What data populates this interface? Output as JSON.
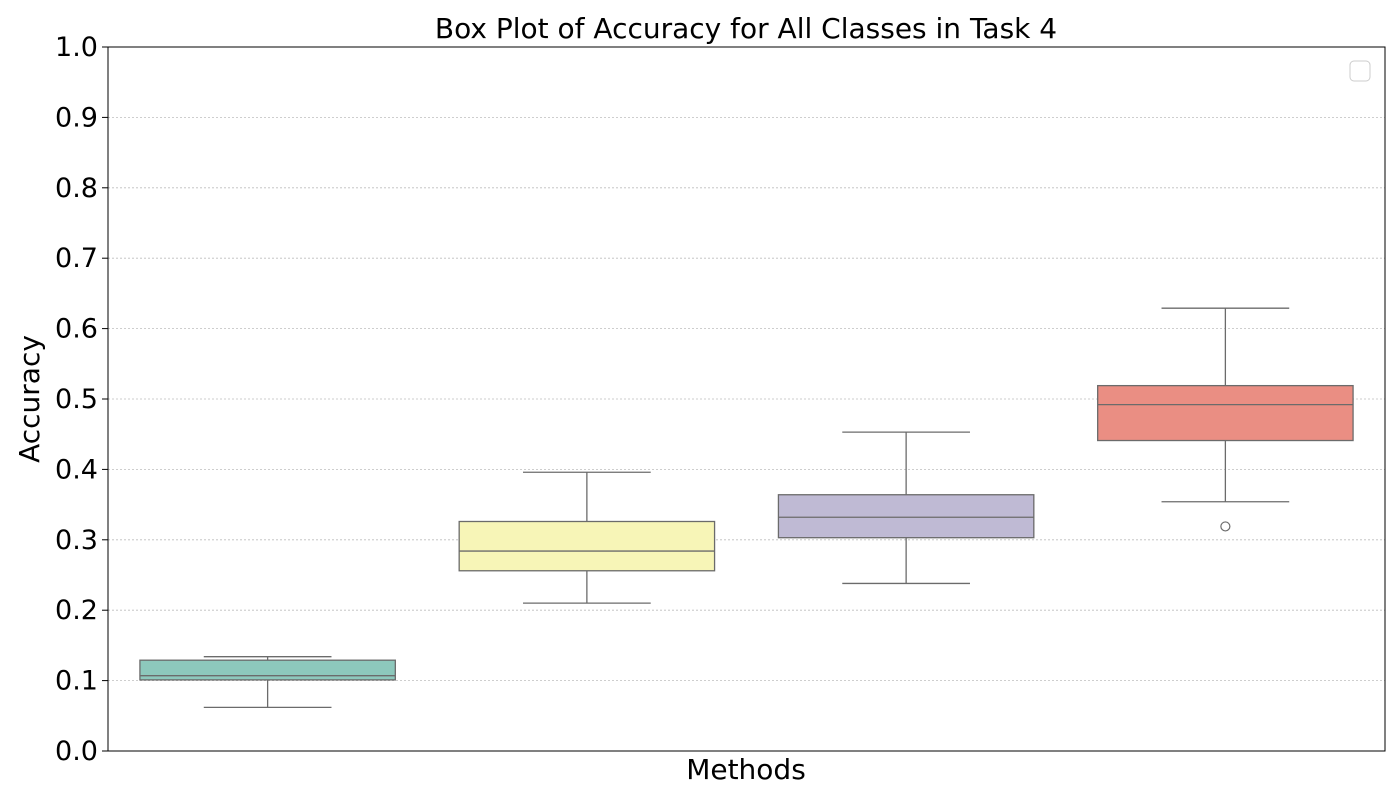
{
  "chart_data": {
    "type": "box",
    "title": "Box Plot of Accuracy for All Classes in Task 4",
    "xlabel": "Methods",
    "ylabel": "Accuracy",
    "ylim": [
      0,
      1
    ],
    "yticks": [
      "0.0",
      "0.1",
      "0.2",
      "0.3",
      "0.4",
      "0.5",
      "0.6",
      "0.7",
      "0.8",
      "0.9",
      "1.0"
    ],
    "grid": "horizontal dotted",
    "legend": "top-right (empty)",
    "series": [
      {
        "color": "#8dc8bc",
        "whisker_low": 0.062,
        "q1": 0.101,
        "median": 0.107,
        "q3": 0.129,
        "whisker_high": 0.134,
        "outliers": []
      },
      {
        "color": "#f7f5b7",
        "whisker_low": 0.21,
        "q1": 0.256,
        "median": 0.284,
        "q3": 0.326,
        "whisker_high": 0.396,
        "outliers": []
      },
      {
        "color": "#bfbad4",
        "whisker_low": 0.238,
        "q1": 0.303,
        "median": 0.332,
        "q3": 0.364,
        "whisker_high": 0.453,
        "outliers": []
      },
      {
        "color": "#ea8e83",
        "whisker_low": 0.354,
        "q1": 0.441,
        "median": 0.492,
        "q3": 0.519,
        "whisker_high": 0.629,
        "outliers": [
          0.319
        ]
      }
    ]
  }
}
